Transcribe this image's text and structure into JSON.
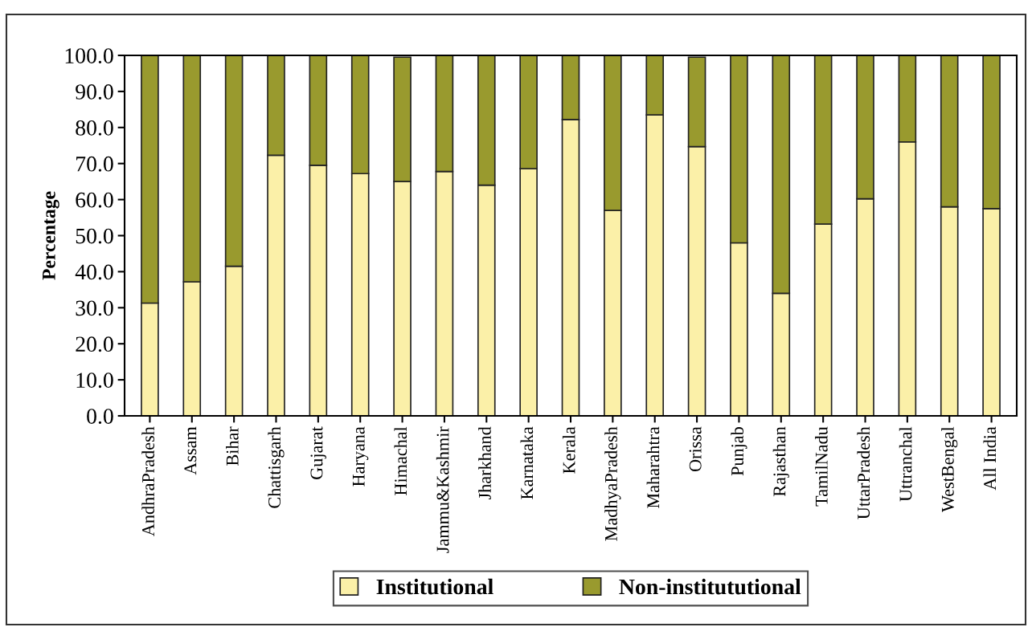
{
  "chart_data": {
    "type": "bar",
    "stacked": true,
    "ylabel": "Percentage",
    "categories": [
      "AndhraPradesh",
      "Assam",
      "Bihar",
      "Chattisgarh",
      "Gujarat",
      "Haryana",
      "Himachal",
      "Jammu&Kashmir",
      "Jharkhand",
      "Karnataka",
      "Kerala",
      "MadhyaPradesh",
      "Maharahtra",
      "Orissa",
      "Punjab",
      "Rajasthan",
      "TamilNadu",
      "UttarPradesh",
      "Uttranchal",
      "WestBengal",
      "All India"
    ],
    "series": [
      {
        "name": "Institutional",
        "color": "#fbf0a8",
        "values": [
          31.3,
          37.2,
          41.5,
          72.3,
          69.5,
          67.2,
          65.0,
          67.8,
          64.0,
          68.6,
          82.2,
          57.0,
          83.5,
          74.7,
          48.0,
          34.0,
          53.2,
          60.2,
          76.0,
          58.0,
          57.5
        ]
      },
      {
        "name": "Non-institututional",
        "color": "#999a2e",
        "values": [
          68.7,
          62.8,
          58.5,
          27.7,
          30.5,
          32.8,
          34.5,
          32.2,
          36.0,
          31.4,
          17.8,
          43.0,
          16.5,
          24.8,
          52.0,
          66.0,
          46.8,
          39.8,
          24.0,
          42.0,
          42.5
        ]
      }
    ],
    "ylim": [
      0,
      100
    ],
    "yticks": [
      {
        "value": 0,
        "label": "0.0"
      },
      {
        "value": 10,
        "label": "10.0"
      },
      {
        "value": 20,
        "label": "20.0"
      },
      {
        "value": 30,
        "label": "30.0"
      },
      {
        "value": 40,
        "label": "40.0"
      },
      {
        "value": 50,
        "label": "50.0"
      },
      {
        "value": 60,
        "label": "60.0"
      },
      {
        "value": 70,
        "label": "70.0"
      },
      {
        "value": 80,
        "label": "80.0"
      },
      {
        "value": 90,
        "label": "90.0"
      },
      {
        "value": 100,
        "label": "100.0"
      }
    ],
    "grid": false,
    "legend": "bottom"
  }
}
